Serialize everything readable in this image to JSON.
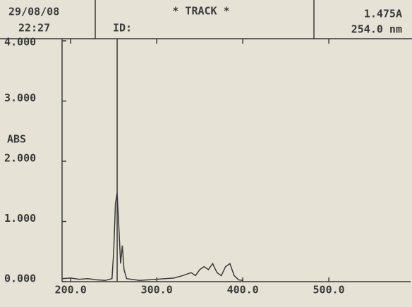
{
  "header": {
    "date": "29/08/08",
    "time": "22:27",
    "title": "* TRACK *",
    "id_label": "ID:",
    "absorbance": "1.475A",
    "wavelength": "254.0 nm"
  },
  "chart_data": {
    "type": "line",
    "y_label": "ABS",
    "x": [
      190,
      200,
      210,
      220,
      230,
      240,
      248,
      250,
      252,
      254,
      256,
      258,
      260,
      262,
      265,
      280,
      300,
      320,
      330,
      340,
      345,
      350,
      355,
      360,
      365,
      370,
      375,
      380,
      385,
      390,
      395,
      400
    ],
    "values": [
      0.05,
      0.06,
      0.04,
      0.05,
      0.03,
      0.02,
      0.05,
      0.5,
      1.3,
      1.475,
      0.9,
      0.3,
      0.6,
      0.2,
      0.05,
      0.02,
      0.04,
      0.06,
      0.1,
      0.15,
      0.1,
      0.2,
      0.25,
      0.2,
      0.3,
      0.15,
      0.1,
      0.25,
      0.3,
      0.1,
      0.03,
      0.02
    ],
    "color": "#3a3a3a",
    "cursor_x": 254,
    "xlim": [
      190,
      595
    ],
    "ylim": [
      0,
      4
    ],
    "xticks": [
      {
        "value": 200,
        "label": "200.0"
      },
      {
        "value": 300,
        "label": "300.0"
      },
      {
        "value": 400,
        "label": "400.0"
      },
      {
        "value": 500,
        "label": "500.0"
      }
    ],
    "yticks": [
      {
        "value": 0,
        "label": "0.000"
      },
      {
        "value": 1,
        "label": "1.000"
      },
      {
        "value": 2,
        "label": "2.000"
      },
      {
        "value": 3,
        "label": "3.000"
      },
      {
        "value": 4,
        "label": "4.000"
      }
    ]
  }
}
